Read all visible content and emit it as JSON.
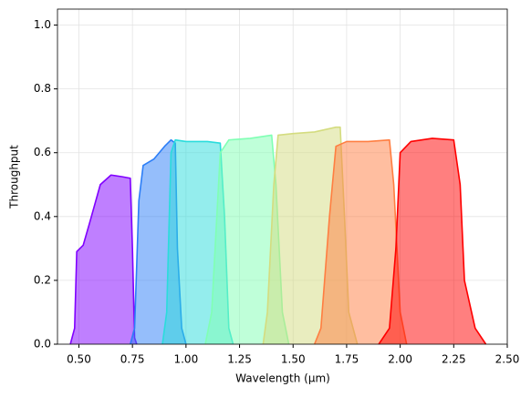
{
  "chart_data": {
    "type": "area",
    "xlabel": "Wavelength (μm)",
    "ylabel": "Throughput",
    "xlim": [
      0.4,
      2.5
    ],
    "ylim": [
      0,
      1.05
    ],
    "xticks": [
      {
        "value": 0.5,
        "label": "0.50"
      },
      {
        "value": 0.75,
        "label": "0.75"
      },
      {
        "value": 1.0,
        "label": "1.00"
      },
      {
        "value": 1.25,
        "label": "1.25"
      },
      {
        "value": 1.5,
        "label": "1.50"
      },
      {
        "value": 1.75,
        "label": "1.75"
      },
      {
        "value": 2.0,
        "label": "2.00"
      },
      {
        "value": 2.25,
        "label": "2.25"
      },
      {
        "value": 2.5,
        "label": "2.50"
      }
    ],
    "yticks": [
      {
        "value": 0,
        "label": "0.0"
      },
      {
        "value": 0.2,
        "label": "0.2"
      },
      {
        "value": 0.4,
        "label": "0.4"
      },
      {
        "value": 0.6,
        "label": "0.6"
      },
      {
        "value": 0.8,
        "label": "0.8"
      },
      {
        "value": 1.0,
        "label": "1.0"
      }
    ],
    "grid": true,
    "series": [
      {
        "color": "#8000ff",
        "x": [
          0.46,
          0.48,
          0.49,
          0.52,
          0.55,
          0.6,
          0.65,
          0.7,
          0.74,
          0.75,
          0.76,
          0.77
        ],
        "values": [
          0,
          0.05,
          0.29,
          0.31,
          0.38,
          0.5,
          0.53,
          0.525,
          0.52,
          0.3,
          0.02,
          0
        ]
      },
      {
        "color": "#2c7ef7",
        "x": [
          0.74,
          0.76,
          0.78,
          0.8,
          0.85,
          0.9,
          0.93,
          0.95,
          0.96,
          0.98,
          1.0
        ],
        "values": [
          0,
          0.05,
          0.45,
          0.56,
          0.58,
          0.62,
          0.64,
          0.63,
          0.3,
          0.05,
          0
        ]
      },
      {
        "color": "#2adcdc",
        "x": [
          0.89,
          0.91,
          0.93,
          0.95,
          1.0,
          1.1,
          1.16,
          1.18,
          1.2,
          1.22
        ],
        "values": [
          0,
          0.1,
          0.6,
          0.64,
          0.635,
          0.635,
          0.63,
          0.4,
          0.05,
          0
        ]
      },
      {
        "color": "#80ffb4",
        "x": [
          1.09,
          1.12,
          1.16,
          1.2,
          1.3,
          1.4,
          1.42,
          1.45,
          1.48
        ],
        "values": [
          0,
          0.1,
          0.6,
          0.64,
          0.645,
          0.655,
          0.5,
          0.1,
          0
        ]
      },
      {
        "color": "#d4dc7f",
        "x": [
          1.36,
          1.38,
          1.41,
          1.43,
          1.5,
          1.6,
          1.7,
          1.72,
          1.74,
          1.76,
          1.8
        ],
        "values": [
          0,
          0.1,
          0.5,
          0.655,
          0.66,
          0.665,
          0.68,
          0.68,
          0.4,
          0.1,
          0
        ]
      },
      {
        "color": "#ff7e41",
        "x": [
          1.6,
          1.63,
          1.67,
          1.7,
          1.75,
          1.85,
          1.95,
          1.97,
          2.0,
          2.03
        ],
        "values": [
          0,
          0.05,
          0.4,
          0.62,
          0.635,
          0.635,
          0.64,
          0.5,
          0.1,
          0
        ]
      },
      {
        "color": "#ff0000",
        "x": [
          1.9,
          1.95,
          1.98,
          2.0,
          2.05,
          2.15,
          2.25,
          2.28,
          2.3,
          2.35,
          2.4
        ],
        "values": [
          0,
          0.05,
          0.3,
          0.6,
          0.635,
          0.645,
          0.64,
          0.5,
          0.2,
          0.05,
          0
        ]
      }
    ]
  }
}
